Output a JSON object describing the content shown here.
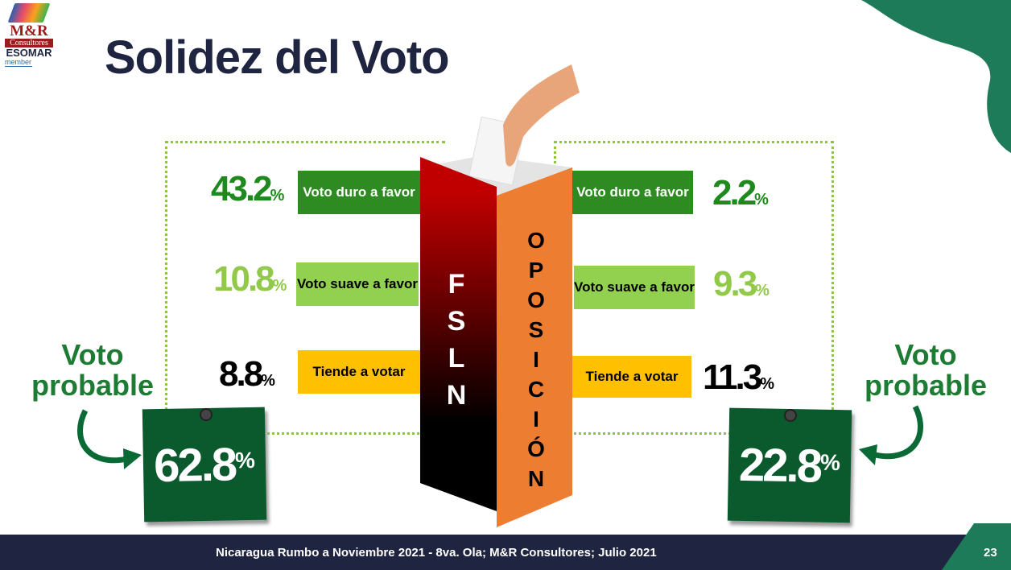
{
  "logo": {
    "brand": "M&R",
    "sub": "Consultores",
    "esomar": "ESOMAR",
    "member": "member"
  },
  "title": "Solidez del Voto",
  "fsln": {
    "name": "FSLN",
    "letters": [
      "F",
      "S",
      "L",
      "N"
    ],
    "rows": [
      {
        "pct": "43.2",
        "label": "Voto duro a favor",
        "color": "#1e8a1e"
      },
      {
        "pct": "10.8",
        "label": "Voto suave a favor",
        "color": "#92c94a"
      },
      {
        "pct": "8.8",
        "label": "Tiende a votar",
        "color": "#000000"
      }
    ],
    "probable_label": "Voto probable",
    "probable": "62.8"
  },
  "oposicion": {
    "name": "OPOSICIÓN",
    "letters": [
      "O",
      "P",
      "O",
      "S",
      "I",
      "C",
      "I",
      "Ó",
      "N"
    ],
    "rows": [
      {
        "pct": "2.2",
        "label": "Voto duro a favor",
        "color": "#1e8a1e"
      },
      {
        "pct": "9.3",
        "label": "Voto suave a favor",
        "color": "#92c94a"
      },
      {
        "pct": "11.3",
        "label": "Tiende a votar",
        "color": "#000000"
      }
    ],
    "probable_label": "Voto probable",
    "probable": "22.8"
  },
  "pct_sign": "%",
  "colors": {
    "duro": "#2e8b22",
    "suave": "#92d050",
    "tiende": "#ffc000",
    "red": "#c00000",
    "orange": "#ed7d31",
    "navy": "#1f2540",
    "green": "#1e7b5a"
  },
  "footer": {
    "text": "Nicaragua Rumbo a Noviembre 2021 -  8va. Ola; M&R Consultores; Julio 2021",
    "page": "23"
  }
}
